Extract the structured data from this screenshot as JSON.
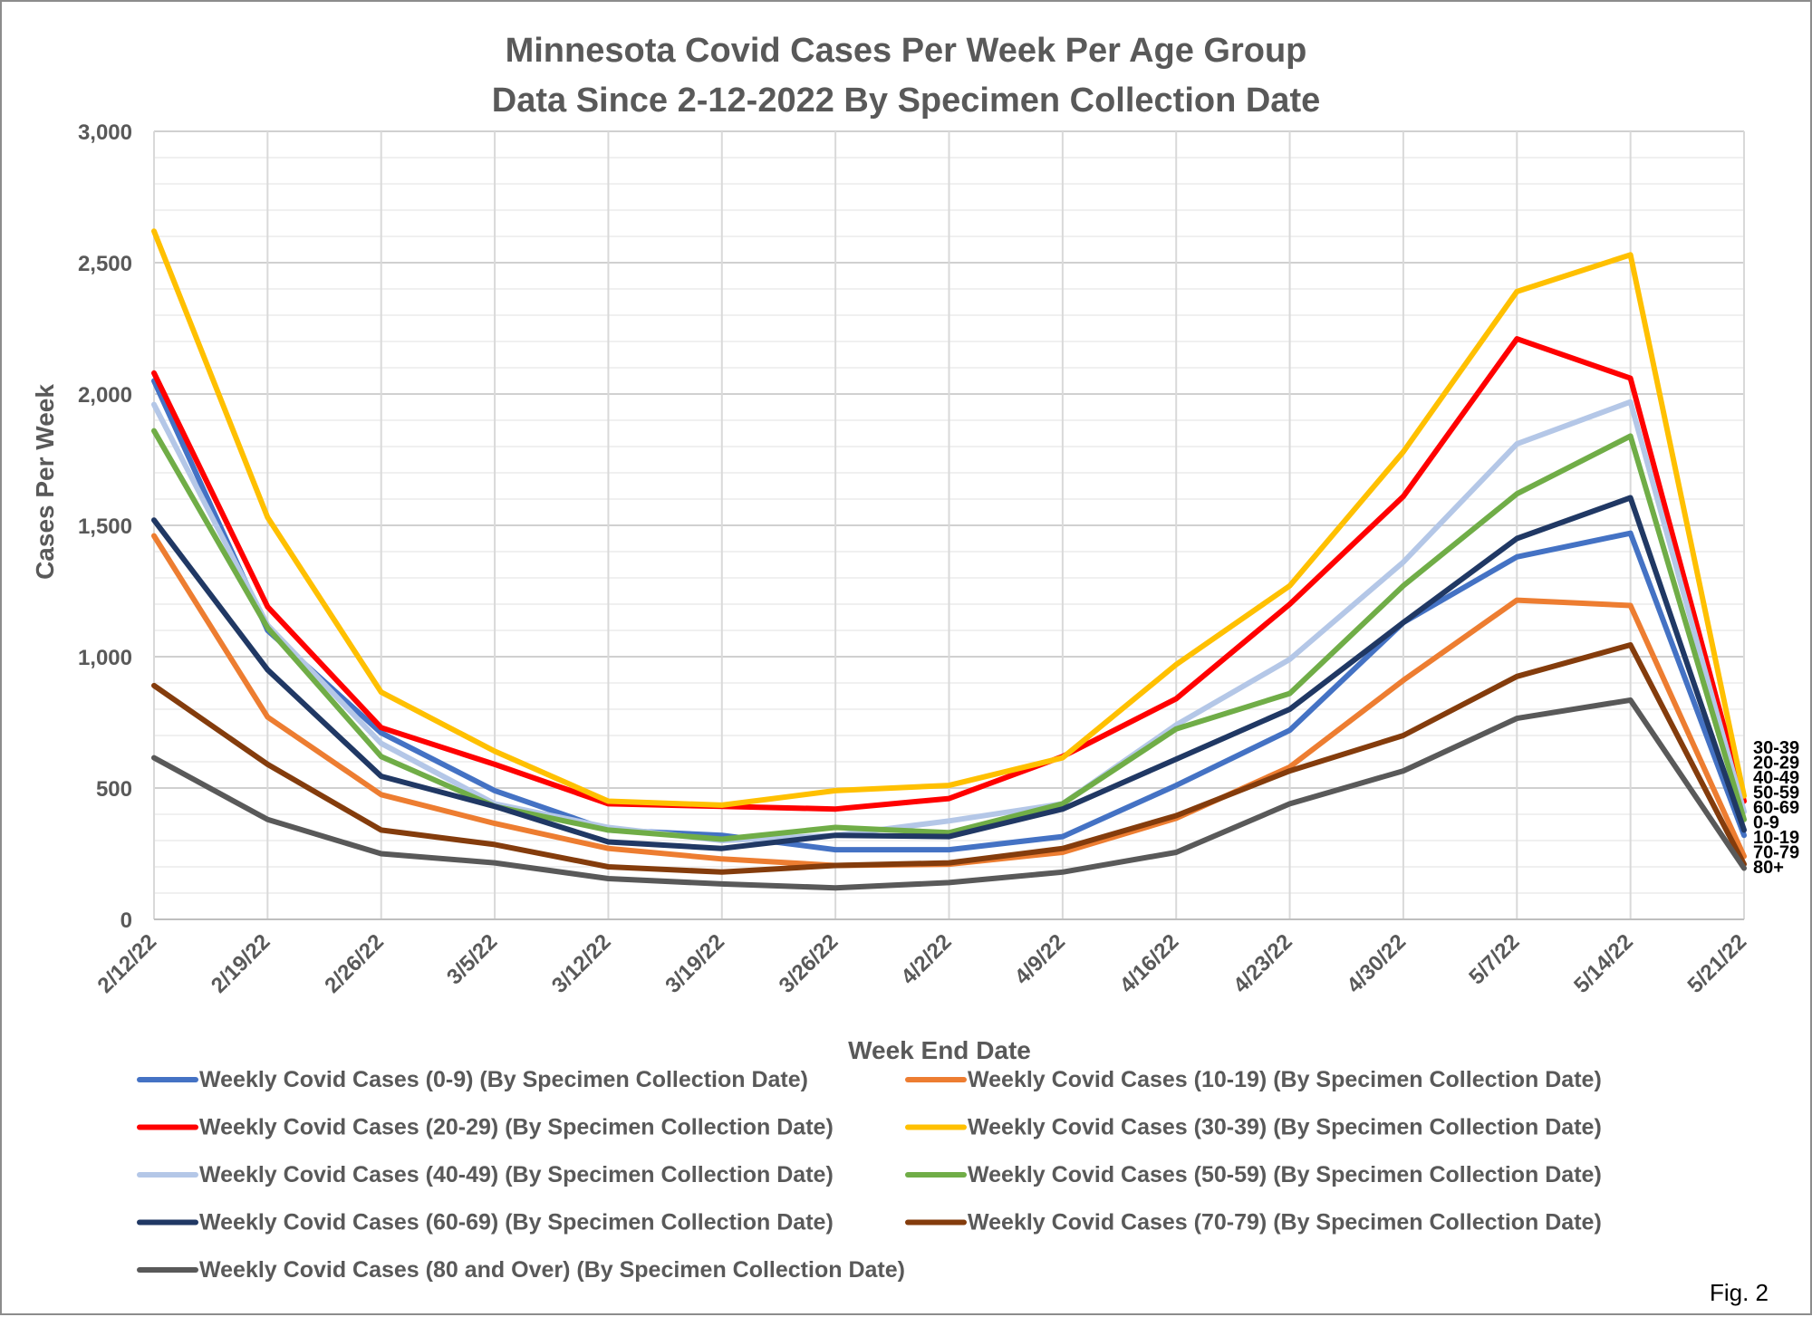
{
  "chart_data": {
    "type": "line",
    "title_lines": [
      "Minnesota Covid Cases Per Week Per Age Group",
      "Data Since 2-12-2022 By Specimen Collection Date"
    ],
    "xlabel": "Week End Date",
    "ylabel": "Cases Per Week",
    "ylim": [
      0,
      3000
    ],
    "yticks": [
      0,
      500,
      1000,
      1500,
      2000,
      2500,
      3000
    ],
    "ytick_labels": [
      "0",
      "500",
      "1,000",
      "1,500",
      "2,000",
      "2,500",
      "3,000"
    ],
    "categories": [
      "2/12/22",
      "2/19/22",
      "2/26/22",
      "3/5/22",
      "3/12/22",
      "3/19/22",
      "3/26/22",
      "4/2/22",
      "4/9/22",
      "4/16/22",
      "4/23/22",
      "4/30/22",
      "5/7/22",
      "5/14/22",
      "5/21/22"
    ],
    "grid": "horizontal and vertical",
    "legend_placement": "bottom",
    "series": [
      {
        "name": "Weekly Covid Cases (0-9) (By Specimen Collection Date)",
        "color": "#4472c4",
        "end_label": "0-9",
        "values": [
          2050,
          1100,
          710,
          490,
          340,
          320,
          265,
          265,
          315,
          510,
          720,
          1130,
          1380,
          1470,
          320
        ]
      },
      {
        "name": "Weekly Covid Cases (10-19) (By Specimen Collection Date)",
        "color": "#ed7d31",
        "end_label": "10-19",
        "values": [
          1460,
          770,
          475,
          365,
          270,
          230,
          205,
          210,
          255,
          385,
          580,
          910,
          1215,
          1195,
          240
        ]
      },
      {
        "name": "Weekly Covid Cases (20-29) (By Specimen Collection Date)",
        "color": "#ff0000",
        "end_label": "20-29",
        "values": [
          2080,
          1190,
          730,
          590,
          440,
          430,
          420,
          460,
          620,
          840,
          1200,
          1610,
          2210,
          2060,
          450
        ]
      },
      {
        "name": "Weekly Covid Cases (30-39) (By Specimen Collection Date)",
        "color": "#ffc000",
        "end_label": "30-39",
        "values": [
          2620,
          1530,
          865,
          640,
          450,
          435,
          490,
          510,
          615,
          970,
          1270,
          1780,
          2390,
          2530,
          470
        ]
      },
      {
        "name": "Weekly Covid Cases (40-49) (By Specimen Collection Date)",
        "color": "#b4c7e7",
        "end_label": "40-49",
        "values": [
          1960,
          1120,
          670,
          440,
          350,
          300,
          320,
          375,
          440,
          740,
          990,
          1360,
          1810,
          1970,
          410
        ]
      },
      {
        "name": "Weekly Covid Cases (50-59) (By Specimen Collection Date)",
        "color": "#70ad47",
        "end_label": "50-59",
        "values": [
          1860,
          1110,
          620,
          430,
          340,
          305,
          350,
          330,
          440,
          725,
          860,
          1270,
          1620,
          1840,
          380
        ]
      },
      {
        "name": "Weekly Covid Cases (60-69) (By Specimen Collection Date)",
        "color": "#203864",
        "end_label": "60-69",
        "values": [
          1520,
          950,
          545,
          430,
          295,
          270,
          320,
          315,
          420,
          610,
          800,
          1130,
          1450,
          1605,
          340
        ]
      },
      {
        "name": "Weekly Covid Cases (70-79) (By Specimen Collection Date)",
        "color": "#843c0c",
        "end_label": "70-79",
        "values": [
          890,
          590,
          340,
          285,
          200,
          180,
          205,
          215,
          270,
          395,
          565,
          700,
          925,
          1045,
          210
        ]
      },
      {
        "name": "Weekly Covid Cases (80 and Over) (By Specimen Collection Date)",
        "color": "#595959",
        "end_label": "80+",
        "values": [
          615,
          380,
          250,
          215,
          155,
          135,
          120,
          140,
          180,
          255,
          440,
          565,
          765,
          835,
          195
        ]
      }
    ]
  },
  "figure_label": "Fig. 2"
}
